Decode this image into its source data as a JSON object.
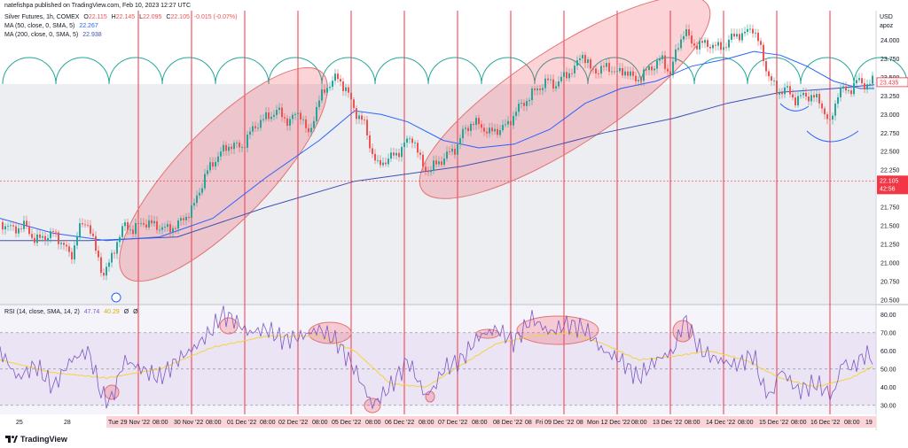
{
  "publish_line": "natefishpa published on TradingView.com, Feb 10, 2023 12:27 UTC",
  "legend": {
    "symbol": "Silver Futures, 1h, COMEX",
    "o_label": "O",
    "o": "22.115",
    "h_label": "H",
    "h": "22.145",
    "l_label": "L",
    "l": "22.095",
    "c_label": "C",
    "c": "22.105",
    "change": "-0.015 (-0.07%)",
    "ma50_label": "MA (50, close, 0, SMA, 5)",
    "ma50_value": "22.267",
    "ma200_label": "MA (200, close, 0, SMA, 5)",
    "ma200_value": "22.938",
    "rsi_label": "RSI (14, close, SMA, 14, 2)",
    "rsi_value": "47.74",
    "rsi_ma_value": "40.29",
    "rsi_extra1": "Ø",
    "rsi_extra2": "Ø"
  },
  "price_axis": {
    "currency": "USD",
    "sub": "apoz",
    "ticks": [
      "24.000",
      "23.750",
      "23.500",
      "23.250",
      "23.000",
      "22.750",
      "22.500",
      "22.250",
      "21.750",
      "21.500",
      "21.250",
      "21.000",
      "20.750",
      "20.500"
    ],
    "current_price": "22.105",
    "countdown": "42:56",
    "ma_tag": "23.435"
  },
  "rsi_axis": {
    "ticks": [
      "80.00",
      "70.00",
      "60.00",
      "50.00",
      "40.00",
      "30.00"
    ]
  },
  "time_axis": {
    "labels": [
      "25",
      "28",
      "Tue 29 Nov '22",
      "08:00",
      "30 Nov '22",
      "08:00",
      "01 Dec '22",
      "08:00",
      "02 Dec '22",
      "08:00",
      "05 Dec '22",
      "08:00",
      "06 Dec '22",
      "08:00",
      "07 Dec '22",
      "08:00",
      "08 Dec '22",
      "08",
      "Fri 09 Dec '22",
      "08",
      "Mon 12 Dec '22",
      "08:00",
      "13 Dec '22",
      "08:00",
      "14 Dec '22",
      "08:00",
      "15 Dec '22",
      "08:00",
      "16 Dec '22",
      "08:00",
      "19"
    ]
  },
  "footer": {
    "brand": "TradingView"
  },
  "colors": {
    "up": "#26a69a",
    "down": "#ef5350",
    "ma50": "#2962ff",
    "ma200": "#3f51b5",
    "rsi": "#7e57c2",
    "rsi_ma": "#f5d33c",
    "cycles": "#26a69a",
    "vlines": "#f23645",
    "ellipse_fill": "rgba(242,54,69,0.22)",
    "ellipse_stroke": "#e57373"
  },
  "chart_data": [
    {
      "type": "candlestick",
      "title": "Silver Futures, 1h, COMEX",
      "ylim": [
        20.45,
        24.4
      ],
      "series": [
        {
          "name": "price",
          "segments_path": [
            [
              0,
              21.55
            ],
            [
              14,
              21.45
            ],
            [
              28,
              21.5
            ],
            [
              40,
              21.3
            ],
            [
              50,
              21.35
            ],
            [
              60,
              21.4
            ],
            [
              72,
              21.25
            ],
            [
              80,
              21.05
            ],
            [
              88,
              21.45
            ],
            [
              100,
              21.55
            ],
            [
              108,
              21.15
            ],
            [
              116,
              20.85
            ],
            [
              124,
              21.0
            ],
            [
              132,
              21.3
            ],
            [
              140,
              21.5
            ],
            [
              150,
              21.45
            ],
            [
              162,
              21.55
            ],
            [
              176,
              21.5
            ],
            [
              190,
              21.45
            ],
            [
              204,
              21.55
            ],
            [
              218,
              21.75
            ],
            [
              232,
              22.2
            ],
            [
              246,
              22.45
            ],
            [
              260,
              22.6
            ],
            [
              272,
              22.55
            ],
            [
              282,
              22.75
            ],
            [
              292,
              22.9
            ],
            [
              300,
              22.95
            ],
            [
              312,
              23.05
            ],
            [
              326,
              22.9
            ],
            [
              338,
              23.05
            ],
            [
              348,
              22.7
            ],
            [
              358,
              23.15
            ],
            [
              370,
              23.4
            ],
            [
              380,
              23.5
            ],
            [
              390,
              23.35
            ],
            [
              400,
              23.05
            ],
            [
              410,
              22.9
            ],
            [
              418,
              22.55
            ],
            [
              426,
              22.3
            ],
            [
              436,
              22.4
            ],
            [
              446,
              22.45
            ],
            [
              456,
              22.6
            ],
            [
              466,
              22.7
            ],
            [
              476,
              22.3
            ],
            [
              484,
              22.25
            ],
            [
              494,
              22.35
            ],
            [
              504,
              22.45
            ],
            [
              514,
              22.55
            ],
            [
              522,
              22.75
            ],
            [
              532,
              22.9
            ],
            [
              542,
              22.85
            ],
            [
              552,
              22.75
            ],
            [
              562,
              22.8
            ],
            [
              572,
              22.85
            ],
            [
              582,
              23.05
            ],
            [
              594,
              23.2
            ],
            [
              606,
              23.35
            ],
            [
              618,
              23.45
            ],
            [
              628,
              23.4
            ],
            [
              638,
              23.55
            ],
            [
              648,
              23.6
            ],
            [
              656,
              23.85
            ],
            [
              666,
              23.6
            ],
            [
              676,
              23.6
            ],
            [
              686,
              23.65
            ],
            [
              696,
              23.55
            ],
            [
              706,
              23.6
            ],
            [
              716,
              23.45
            ],
            [
              726,
              23.55
            ],
            [
              736,
              23.65
            ],
            [
              746,
              23.75
            ],
            [
              756,
              23.55
            ],
            [
              764,
              23.9
            ],
            [
              772,
              24.15
            ],
            [
              780,
              23.95
            ],
            [
              790,
              23.95
            ],
            [
              800,
              23.95
            ],
            [
              810,
              23.9
            ],
            [
              820,
              23.95
            ],
            [
              830,
              24.1
            ],
            [
              838,
              24.05
            ],
            [
              848,
              24.2
            ],
            [
              856,
              23.95
            ],
            [
              866,
              23.55
            ],
            [
              876,
              23.3
            ],
            [
              886,
              23.35
            ],
            [
              896,
              23.2
            ],
            [
              906,
              23.25
            ],
            [
              916,
              23.25
            ],
            [
              926,
              23.15
            ],
            [
              936,
              22.85
            ],
            [
              946,
              23.35
            ],
            [
              956,
              23.3
            ],
            [
              966,
              23.45
            ],
            [
              976,
              23.4
            ],
            [
              986,
              23.45
            ]
          ]
        },
        {
          "name": "MA (50, close, 0, SMA, 5)",
          "values_path": [
            [
              0,
              21.6
            ],
            [
              60,
              21.4
            ],
            [
              120,
              21.3
            ],
            [
              180,
              21.35
            ],
            [
              240,
              21.6
            ],
            [
              300,
              22.15
            ],
            [
              360,
              22.65
            ],
            [
              400,
              23.05
            ],
            [
              430,
              23.0
            ],
            [
              460,
              22.9
            ],
            [
              500,
              22.65
            ],
            [
              540,
              22.55
            ],
            [
              580,
              22.6
            ],
            [
              620,
              22.8
            ],
            [
              660,
              23.15
            ],
            [
              700,
              23.35
            ],
            [
              740,
              23.45
            ],
            [
              780,
              23.65
            ],
            [
              820,
              23.75
            ],
            [
              850,
              23.85
            ],
            [
              880,
              23.8
            ],
            [
              910,
              23.65
            ],
            [
              940,
              23.45
            ],
            [
              970,
              23.35
            ],
            [
              986,
              23.35
            ]
          ]
        },
        {
          "name": "MA (200, close, 0, SMA, 5)",
          "values_path": [
            [
              0,
              21.3
            ],
            [
              100,
              21.3
            ],
            [
              200,
              21.35
            ],
            [
              300,
              21.75
            ],
            [
              400,
              22.1
            ],
            [
              460,
              22.2
            ],
            [
              520,
              22.3
            ],
            [
              600,
              22.5
            ],
            [
              680,
              22.75
            ],
            [
              760,
              22.95
            ],
            [
              820,
              23.15
            ],
            [
              880,
              23.3
            ],
            [
              940,
              23.35
            ],
            [
              986,
              23.4
            ]
          ]
        }
      ]
    },
    {
      "type": "line",
      "title": "RSI (14, close, SMA, 14, 2)",
      "ylim": [
        25,
        85
      ],
      "series": [
        {
          "name": "RSI",
          "values_path": [
            [
              0,
              60
            ],
            [
              20,
              45
            ],
            [
              40,
              52
            ],
            [
              60,
              40
            ],
            [
              80,
              55
            ],
            [
              100,
              60
            ],
            [
              115,
              35
            ],
            [
              125,
              32
            ],
            [
              140,
              55
            ],
            [
              160,
              50
            ],
            [
              180,
              45
            ],
            [
              200,
              55
            ],
            [
              220,
              62
            ],
            [
              240,
              72
            ],
            [
              250,
              80
            ],
            [
              262,
              78
            ],
            [
              280,
              70
            ],
            [
              300,
              72
            ],
            [
              320,
              66
            ],
            [
              340,
              68
            ],
            [
              360,
              72
            ],
            [
              380,
              65
            ],
            [
              400,
              50
            ],
            [
              420,
              30
            ],
            [
              440,
              40
            ],
            [
              460,
              55
            ],
            [
              470,
              45
            ],
            [
              480,
              35
            ],
            [
              490,
              40
            ],
            [
              500,
              50
            ],
            [
              520,
              55
            ],
            [
              540,
              68
            ],
            [
              560,
              72
            ],
            [
              580,
              65
            ],
            [
              600,
              78
            ],
            [
              620,
              70
            ],
            [
              640,
              75
            ],
            [
              660,
              72
            ],
            [
              680,
              60
            ],
            [
              700,
              55
            ],
            [
              720,
              45
            ],
            [
              740,
              55
            ],
            [
              760,
              60
            ],
            [
              772,
              78
            ],
            [
              790,
              60
            ],
            [
              810,
              55
            ],
            [
              830,
              52
            ],
            [
              850,
              58
            ],
            [
              860,
              40
            ],
            [
              870,
              35
            ],
            [
              880,
              50
            ],
            [
              900,
              38
            ],
            [
              920,
              42
            ],
            [
              940,
              35
            ],
            [
              950,
              55
            ],
            [
              960,
              50
            ],
            [
              975,
              58
            ],
            [
              986,
              56
            ]
          ]
        },
        {
          "name": "RSI-based MA",
          "values_path": [
            [
              0,
              55
            ],
            [
              60,
              48
            ],
            [
              120,
              45
            ],
            [
              180,
              50
            ],
            [
              240,
              62
            ],
            [
              300,
              68
            ],
            [
              360,
              68
            ],
            [
              400,
              60
            ],
            [
              440,
              42
            ],
            [
              480,
              40
            ],
            [
              520,
              52
            ],
            [
              560,
              64
            ],
            [
              600,
              68
            ],
            [
              640,
              70
            ],
            [
              680,
              64
            ],
            [
              720,
              55
            ],
            [
              760,
              57
            ],
            [
              800,
              60
            ],
            [
              840,
              55
            ],
            [
              880,
              45
            ],
            [
              920,
              40
            ],
            [
              960,
              45
            ],
            [
              986,
              52
            ]
          ]
        }
      ]
    }
  ]
}
